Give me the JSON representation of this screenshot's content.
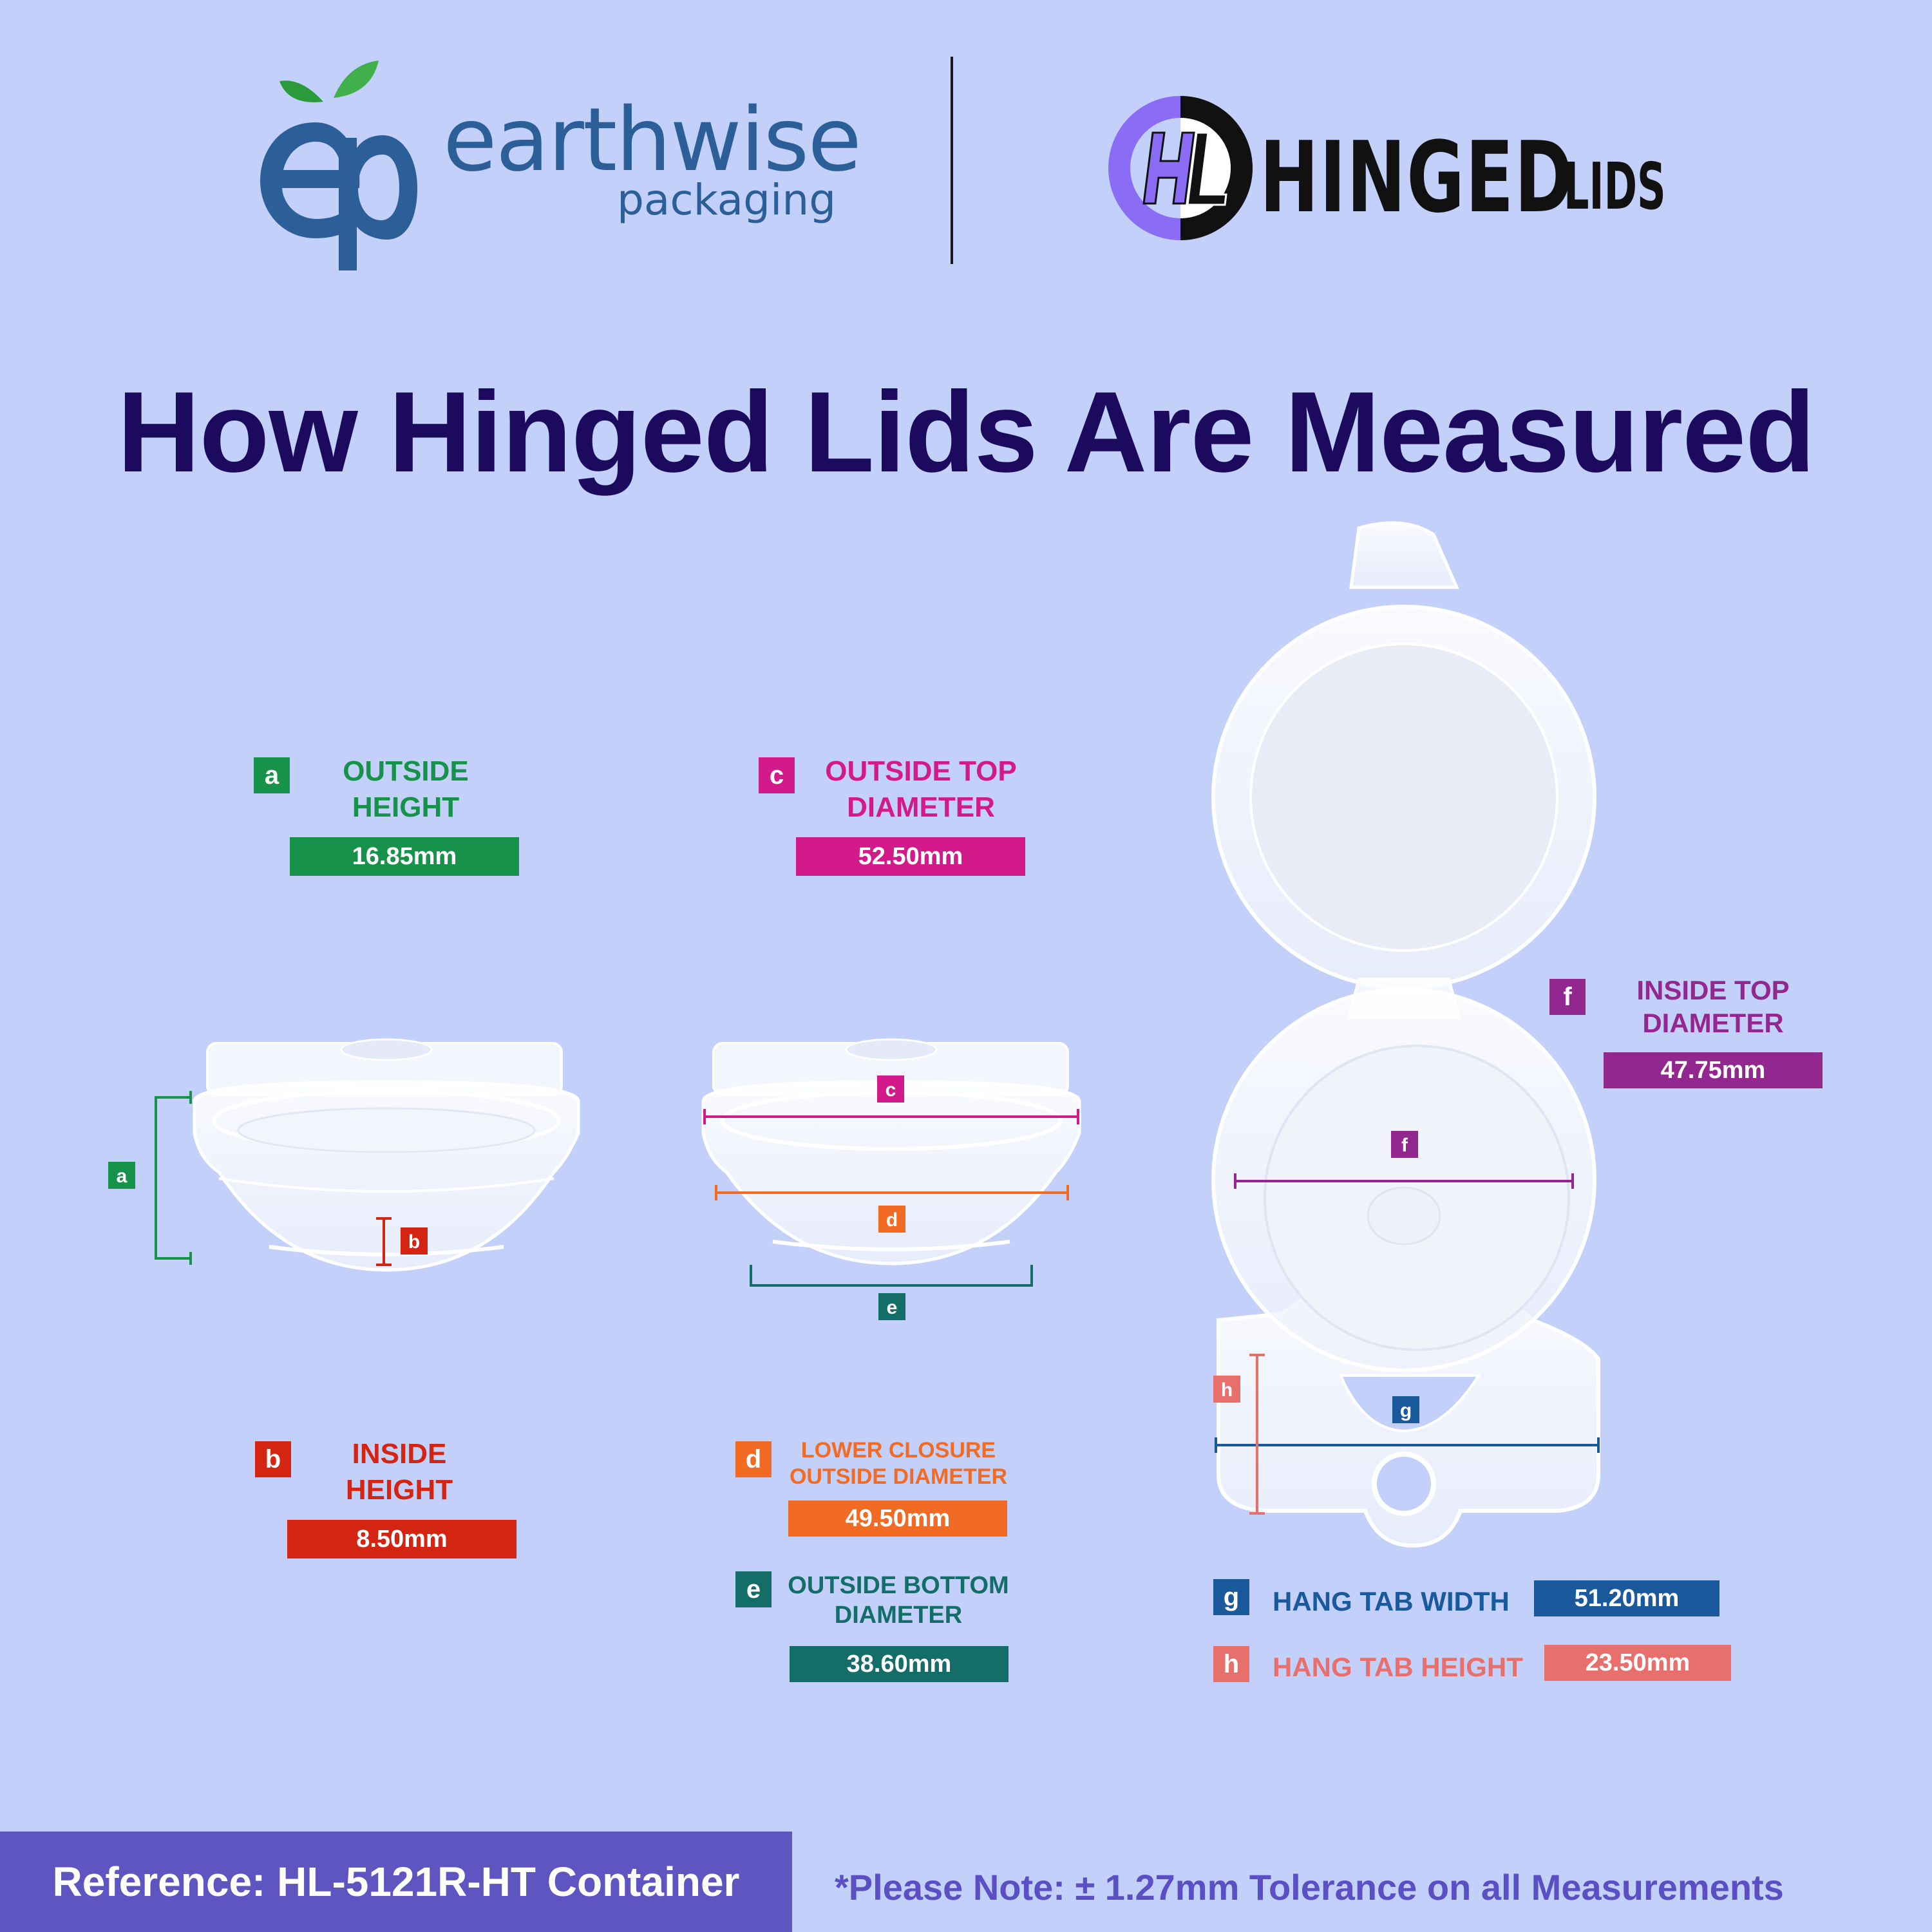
{
  "brand_left": {
    "name": "earthwise",
    "tagline": "packaging",
    "monogram": "ep"
  },
  "brand_right": {
    "name": "HINGED",
    "suffix": "LIDS",
    "monogram": "HL"
  },
  "title": "How Hinged Lids Are Measured",
  "measurements": {
    "a": {
      "letter": "a",
      "label_line1": "OUTSIDE",
      "label_line2": "HEIGHT",
      "value": "16.85mm",
      "color": "#17924a"
    },
    "b": {
      "letter": "b",
      "label_line1": "INSIDE",
      "label_line2": "HEIGHT",
      "value": "8.50mm",
      "color": "#d42412"
    },
    "c": {
      "letter": "c",
      "label_line1": "OUTSIDE TOP",
      "label_line2": "DIAMETER",
      "value": "52.50mm",
      "color": "#d21a8a"
    },
    "d": {
      "letter": "d",
      "label_line1": "LOWER CLOSURE",
      "label_line2": "OUTSIDE DIAMETER",
      "value": "49.50mm",
      "color": "#f26b24"
    },
    "e": {
      "letter": "e",
      "label_line1": "OUTSIDE BOTTOM",
      "label_line2": "DIAMETER",
      "value": "38.60mm",
      "color": "#136e6a"
    },
    "f": {
      "letter": "f",
      "label_line1": "INSIDE TOP",
      "label_line2": "DIAMETER",
      "value": "47.75mm",
      "color": "#92278f"
    },
    "g": {
      "letter": "g",
      "label": "HANG TAB WIDTH",
      "value": "51.20mm",
      "color": "#1a5a9c"
    },
    "h": {
      "letter": "h",
      "label": "HANG TAB HEIGHT",
      "value": "23.50mm",
      "color": "#e8706c"
    }
  },
  "reference": "Reference: HL-5121R-HT Container",
  "note": "*Please Note: ± 1.27mm Tolerance on all Measurements",
  "icons": [
    "leaf-icon",
    "container-illustration"
  ]
}
